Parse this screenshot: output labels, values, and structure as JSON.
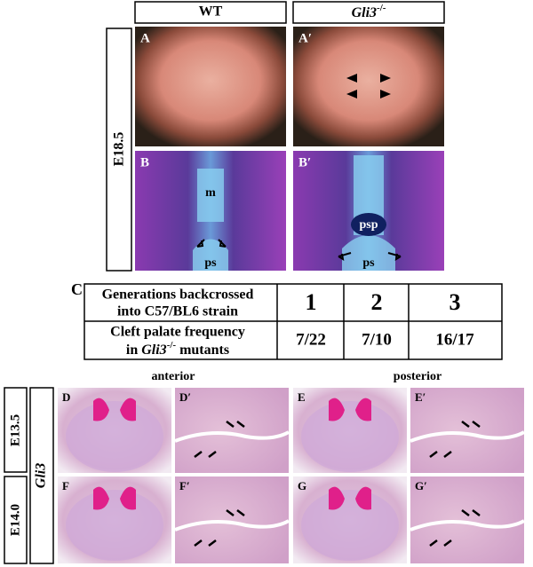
{
  "header": {
    "columns": [
      {
        "label": "WT"
      },
      {
        "gene": "Gli3",
        "superscript": "-/-"
      }
    ]
  },
  "top_panels": {
    "stage": "E18.5",
    "panels": [
      {
        "label": "A"
      },
      {
        "label": "A′"
      },
      {
        "label": "B",
        "annotations": [
          "m",
          "ps"
        ]
      },
      {
        "label": "B′",
        "annotations": [
          "psp",
          "ps"
        ]
      }
    ]
  },
  "table": {
    "label": "C",
    "rows": [
      {
        "header": [
          "Generations backcrossed",
          "into C57/BL6 strain"
        ],
        "cells": [
          "1",
          "2",
          "3"
        ]
      },
      {
        "header": [
          "Cleft palate frequency",
          "in",
          "Gli3",
          "-/-",
          "mutants"
        ],
        "cells": [
          "7/22",
          "7/10",
          "16/17"
        ]
      }
    ]
  },
  "bottom_panels": {
    "positions": [
      "anterior",
      "posterior"
    ],
    "stages": [
      "E13.5",
      "E14.0"
    ],
    "gene": "Gli3",
    "labels": [
      "D",
      "D′",
      "E",
      "E′",
      "F",
      "F′",
      "G",
      "G′"
    ]
  }
}
